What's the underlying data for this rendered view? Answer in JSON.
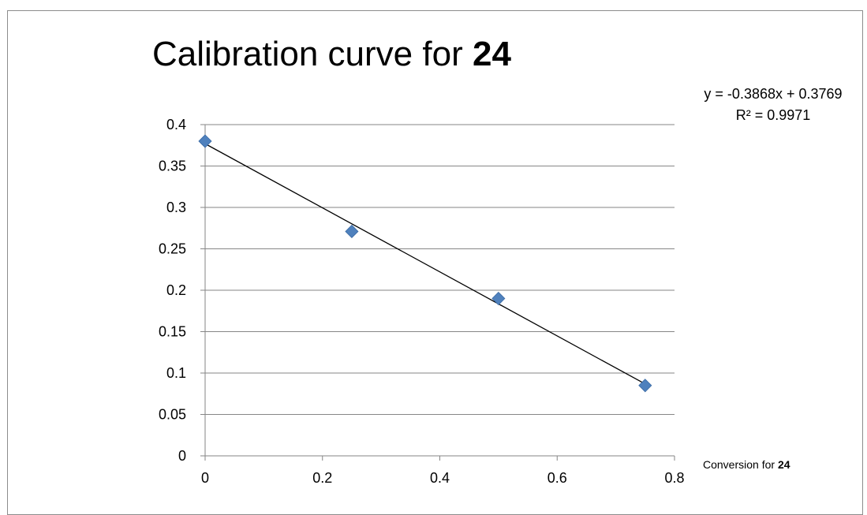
{
  "chart_data": {
    "type": "scatter",
    "title": "Calibration curve for",
    "title_bold": "24",
    "xlabel": "Conversion for",
    "xlabel_bold": "24",
    "ylabel": "",
    "xlim": [
      0,
      0.8
    ],
    "ylim": [
      0,
      0.4
    ],
    "x_ticks": [
      "0",
      "0.2",
      "0.4",
      "0.6",
      "0.8"
    ],
    "y_ticks": [
      "0",
      "0.05",
      "0.1",
      "0.15",
      "0.2",
      "0.25",
      "0.3",
      "0.35",
      "0.4"
    ],
    "grid": true,
    "marker": "diamond",
    "marker_color": "#4f81bd",
    "trendline_color": "#000000",
    "series": [
      {
        "points": [
          {
            "x": 0,
            "y": 0.38
          },
          {
            "x": 0.25,
            "y": 0.271
          },
          {
            "x": 0.5,
            "y": 0.19
          },
          {
            "x": 0.75,
            "y": 0.085
          }
        ]
      }
    ],
    "trendline": {
      "slope": -0.3868,
      "intercept": 0.3769,
      "equation": "y = -0.3868x + 0.3769",
      "r_squared": "R² = 0.9971"
    }
  }
}
